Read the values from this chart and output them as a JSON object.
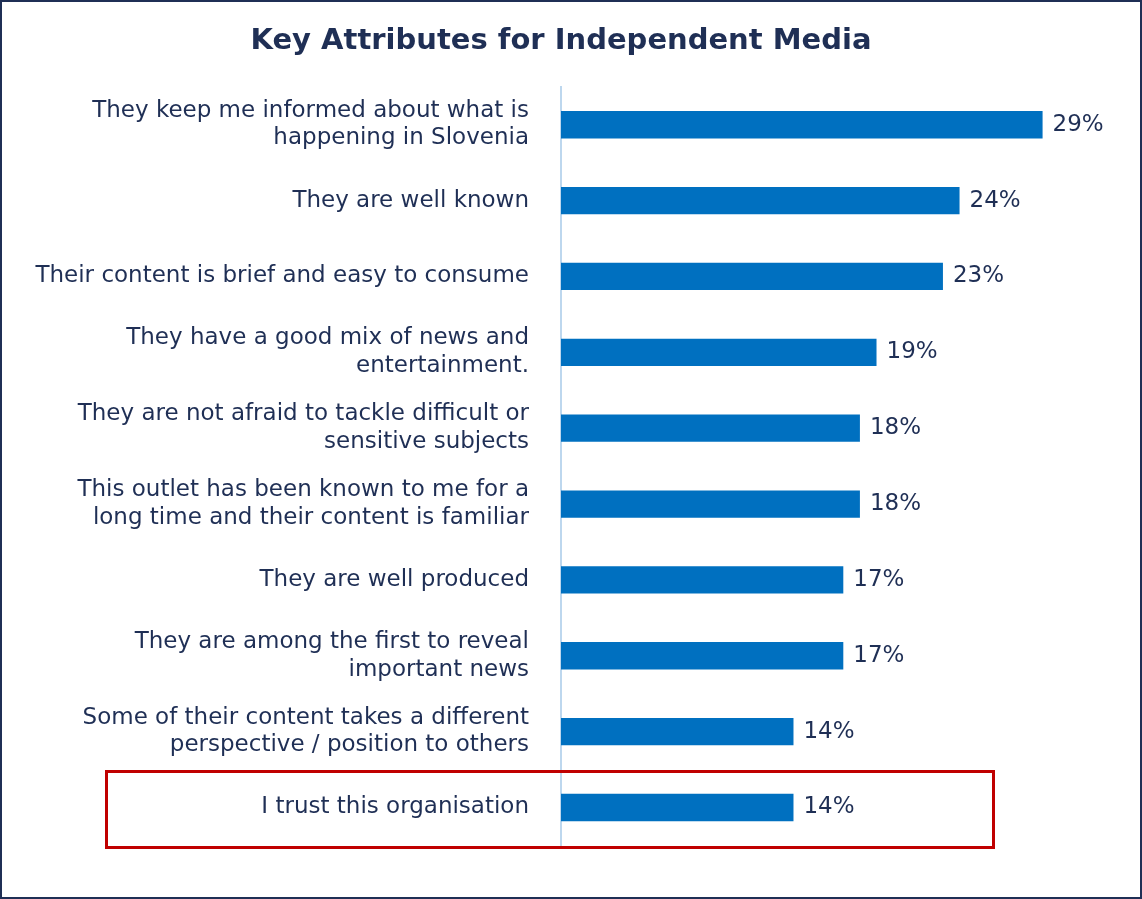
{
  "chart_data": {
    "type": "bar",
    "orientation": "horizontal",
    "title": "Key Attributes for Independent Media",
    "categories": [
      "They keep me informed about what is happening in Slovenia",
      "They are well known",
      "Their content is brief and easy to consume",
      "They have a good mix of news and entertainment.",
      "They are not afraid to tackle difficult or sensitive subjects",
      "This outlet has been known to me for a long time and their content is familiar",
      "They are well produced",
      "They are among the first to reveal important news",
      "Some of their content takes a different perspective / position to others",
      "I trust this organisation"
    ],
    "values": [
      29,
      24,
      23,
      19,
      18,
      18,
      17,
      17,
      14,
      14
    ],
    "value_labels": [
      "29%",
      "24%",
      "23%",
      "19%",
      "18%",
      "18%",
      "17%",
      "17%",
      "14%",
      "14%"
    ],
    "color": "#0070c0",
    "legend": false
  }
}
